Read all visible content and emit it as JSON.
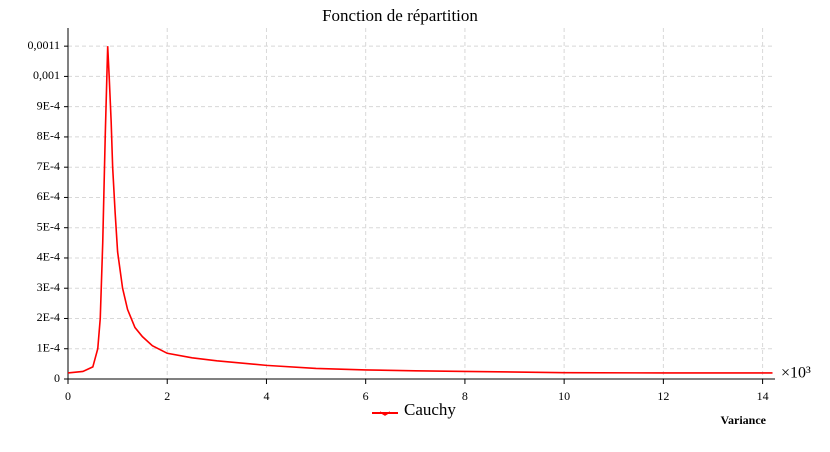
{
  "chart_data": {
    "type": "line",
    "title": "Fonction de répartition",
    "x_label": "Variance",
    "x_multiplier": "×10³",
    "x": [
      0,
      0.3,
      0.5,
      0.6,
      0.65,
      0.7,
      0.75,
      0.8,
      0.83,
      0.87,
      0.9,
      0.95,
      1.0,
      1.1,
      1.2,
      1.35,
      1.5,
      1.7,
      2.0,
      2.5,
      3.0,
      4.0,
      5.0,
      6.0,
      7.0,
      8.0,
      10.0,
      12.0,
      14.2
    ],
    "series": [
      {
        "name": "Cauchy",
        "color": "#ff0000",
        "values": [
          2e-05,
          2.5e-05,
          4e-05,
          0.0001,
          0.0002,
          0.00045,
          0.0008,
          0.0011,
          0.001,
          0.00085,
          0.0007,
          0.00055,
          0.00042,
          0.0003,
          0.00023,
          0.00017,
          0.00014,
          0.00011,
          8.5e-05,
          7e-05,
          6e-05,
          4.5e-05,
          3.5e-05,
          3e-05,
          2.7e-05,
          2.5e-05,
          2.1e-05,
          2e-05,
          2e-05
        ]
      }
    ],
    "xlim": [
      0,
      14.25
    ],
    "xticks": [
      0,
      2,
      4,
      6,
      8,
      10,
      12,
      14
    ],
    "ylim": [
      0,
      0.00116
    ],
    "yticks": [
      0,
      {
        "value": 0.0001,
        "label": "1E-4"
      },
      {
        "value": 0.0002,
        "label": "2E-4"
      },
      {
        "value": 0.0003,
        "label": "3E-4"
      },
      {
        "value": 0.0004,
        "label": "4E-4"
      },
      {
        "value": 0.0005,
        "label": "5E-4"
      },
      {
        "value": 0.0006,
        "label": "6E-4"
      },
      {
        "value": 0.0007,
        "label": "7E-4"
      },
      {
        "value": 0.0008,
        "label": "8E-4"
      },
      {
        "value": 0.0009,
        "label": "9E-4"
      },
      {
        "value": 0.001,
        "label": "0,001"
      },
      {
        "value": 0.0011,
        "label": "0,0011"
      }
    ],
    "grid": true
  }
}
